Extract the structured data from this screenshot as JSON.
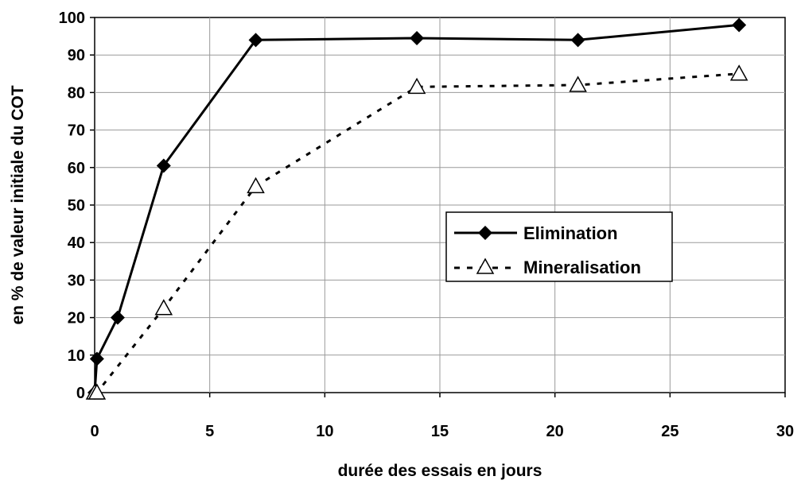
{
  "chart_data": {
    "type": "line",
    "title": "",
    "xlabel": "durée des essais en jours",
    "ylabel": "en % de valeur initiale du COT",
    "xlim": [
      0,
      30
    ],
    "ylim": [
      0,
      100
    ],
    "x_ticks": [
      0,
      5,
      10,
      15,
      20,
      25,
      30
    ],
    "y_ticks": [
      0,
      10,
      20,
      30,
      40,
      50,
      60,
      70,
      80,
      90,
      100
    ],
    "grid": true,
    "legend_position": "center-right",
    "series": [
      {
        "name": "Elimination",
        "line_style": "solid",
        "marker": "filled-diamond",
        "color": "#000000",
        "x": [
          0,
          0.1,
          1,
          3,
          7,
          14,
          21,
          28
        ],
        "y": [
          0,
          9,
          20,
          60.5,
          94,
          94.5,
          94,
          98
        ]
      },
      {
        "name": "Mineralisation",
        "line_style": "dotted",
        "marker": "open-triangle",
        "color": "#000000",
        "x": [
          0,
          0.1,
          3,
          7,
          14,
          21,
          28
        ],
        "y": [
          0,
          0,
          22.5,
          55,
          81.5,
          82,
          85
        ]
      }
    ]
  }
}
